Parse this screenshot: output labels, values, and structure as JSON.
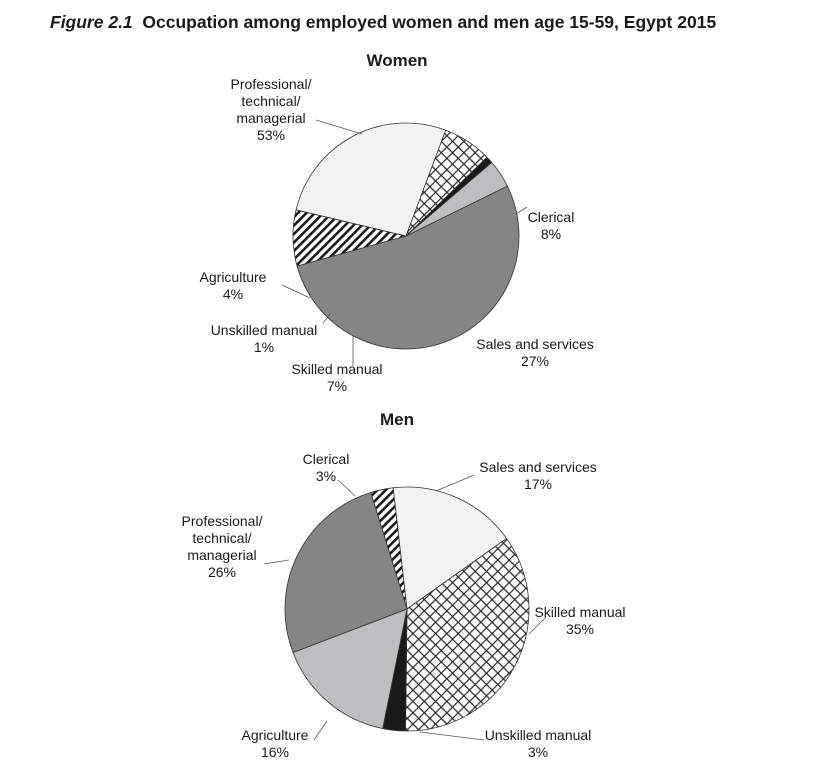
{
  "figure": {
    "label": "Figure 2.1",
    "title": "Occupation among employed women and men age 15-59, Egypt 2015"
  },
  "chart_data": [
    {
      "type": "pie",
      "title": "Women",
      "slices": [
        {
          "name": "Professional/\ntechnical/\nmanagerial",
          "value": 53,
          "label": "53%",
          "fill": "#858585"
        },
        {
          "name": "Clerical",
          "value": 8,
          "label": "8%",
          "fill": "hatch"
        },
        {
          "name": "Sales and services",
          "value": 27,
          "label": "27%",
          "fill": "#f1f3f3"
        },
        {
          "name": "Skilled manual",
          "value": 7,
          "label": "7%",
          "fill": "crosshatch"
        },
        {
          "name": "Unskilled manual",
          "value": 1,
          "label": "1%",
          "fill": "#1a1a1a"
        },
        {
          "name": "Agriculture",
          "value": 4,
          "label": "4%",
          "fill": "#bcbec0"
        }
      ]
    },
    {
      "type": "pie",
      "title": "Men",
      "slices": [
        {
          "name": "Clerical",
          "value": 3,
          "label": "3%",
          "fill": "hatch"
        },
        {
          "name": "Sales and services",
          "value": 17,
          "label": "17%",
          "fill": "#f1f3f3"
        },
        {
          "name": "Skilled manual",
          "value": 35,
          "label": "35%",
          "fill": "crosshatch"
        },
        {
          "name": "Unskilled manual",
          "value": 3,
          "label": "3%",
          "fill": "#1a1a1a"
        },
        {
          "name": "Agriculture",
          "value": 16,
          "label": "16%",
          "fill": "#bcbec0"
        },
        {
          "name": "Professional/\ntechnical/\nmanagerial",
          "value": 26,
          "label": "26%",
          "fill": "#858585"
        }
      ]
    }
  ]
}
